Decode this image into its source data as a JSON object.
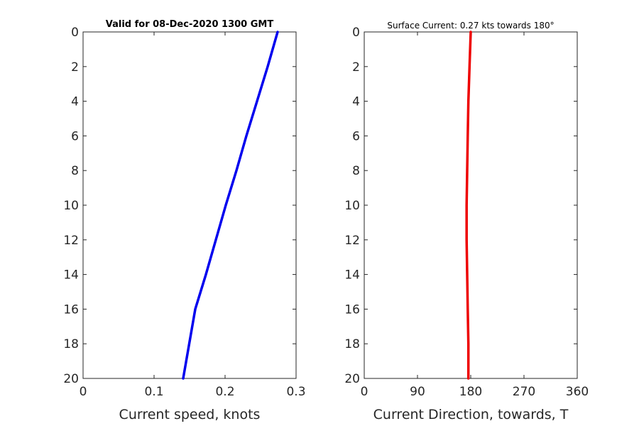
{
  "chart_data": [
    {
      "type": "line",
      "title": "Valid for 08-Dec-2020 1300 GMT",
      "xlabel": "Current speed, knots",
      "ylabel": "",
      "xlim": [
        0,
        0.3
      ],
      "ylim": [
        0,
        20
      ],
      "y_reversed": true,
      "xticks": [
        "0",
        "0.1",
        "0.2",
        "0.3"
      ],
      "yticks": [
        "0",
        "2",
        "4",
        "6",
        "8",
        "10",
        "12",
        "14",
        "16",
        "18",
        "20"
      ],
      "grid": false,
      "color": "#0000ee",
      "series": [
        {
          "x": [
            0.274,
            0.26,
            0.245,
            0.23,
            0.216,
            0.201,
            0.187,
            0.173,
            0.158,
            0.141
          ],
          "y": [
            0,
            2,
            4,
            6,
            8,
            10,
            12,
            14,
            16,
            20
          ]
        }
      ]
    },
    {
      "type": "line",
      "title": "Surface Current: 0.27 kts towards 180°",
      "xlabel": "Current Direction, towards, T",
      "ylabel": "",
      "xlim": [
        0,
        360
      ],
      "ylim": [
        0,
        20
      ],
      "y_reversed": true,
      "xticks": [
        "0",
        "90",
        "180",
        "270",
        "360"
      ],
      "yticks": [
        "0",
        "2",
        "4",
        "6",
        "8",
        "10",
        "12",
        "14",
        "16",
        "18",
        "20"
      ],
      "grid": false,
      "color": "#ee0000",
      "series": [
        {
          "x": [
            180,
            178,
            176,
            175,
            174,
            173,
            173,
            174,
            175,
            176,
            176
          ],
          "y": [
            0,
            2,
            4,
            6,
            8,
            10,
            12,
            14,
            16,
            18,
            20
          ]
        }
      ]
    }
  ]
}
